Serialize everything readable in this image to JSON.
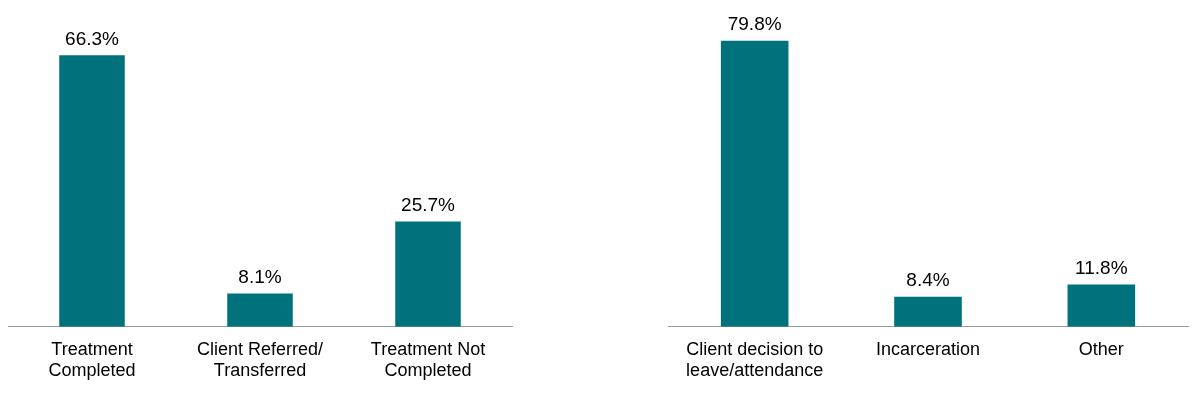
{
  "chart_data": [
    {
      "type": "bar",
      "categories": [
        "Treatment Completed",
        "Client Referred/Transferred",
        "Treatment Not Completed"
      ],
      "values": [
        66.3,
        8.1,
        25.7
      ],
      "value_labels": [
        "66.3%",
        "8.1%",
        "25.7%"
      ],
      "color": "#00727b",
      "grid": false,
      "legend": false
    },
    {
      "type": "bar",
      "categories": [
        "Client decision to leave/attendance",
        "Incarceration",
        "Other"
      ],
      "values": [
        79.8,
        8.4,
        11.8
      ],
      "value_labels": [
        "79.8%",
        "8.4%",
        "11.8%"
      ],
      "color": "#00727b",
      "grid": false,
      "legend": false
    }
  ]
}
